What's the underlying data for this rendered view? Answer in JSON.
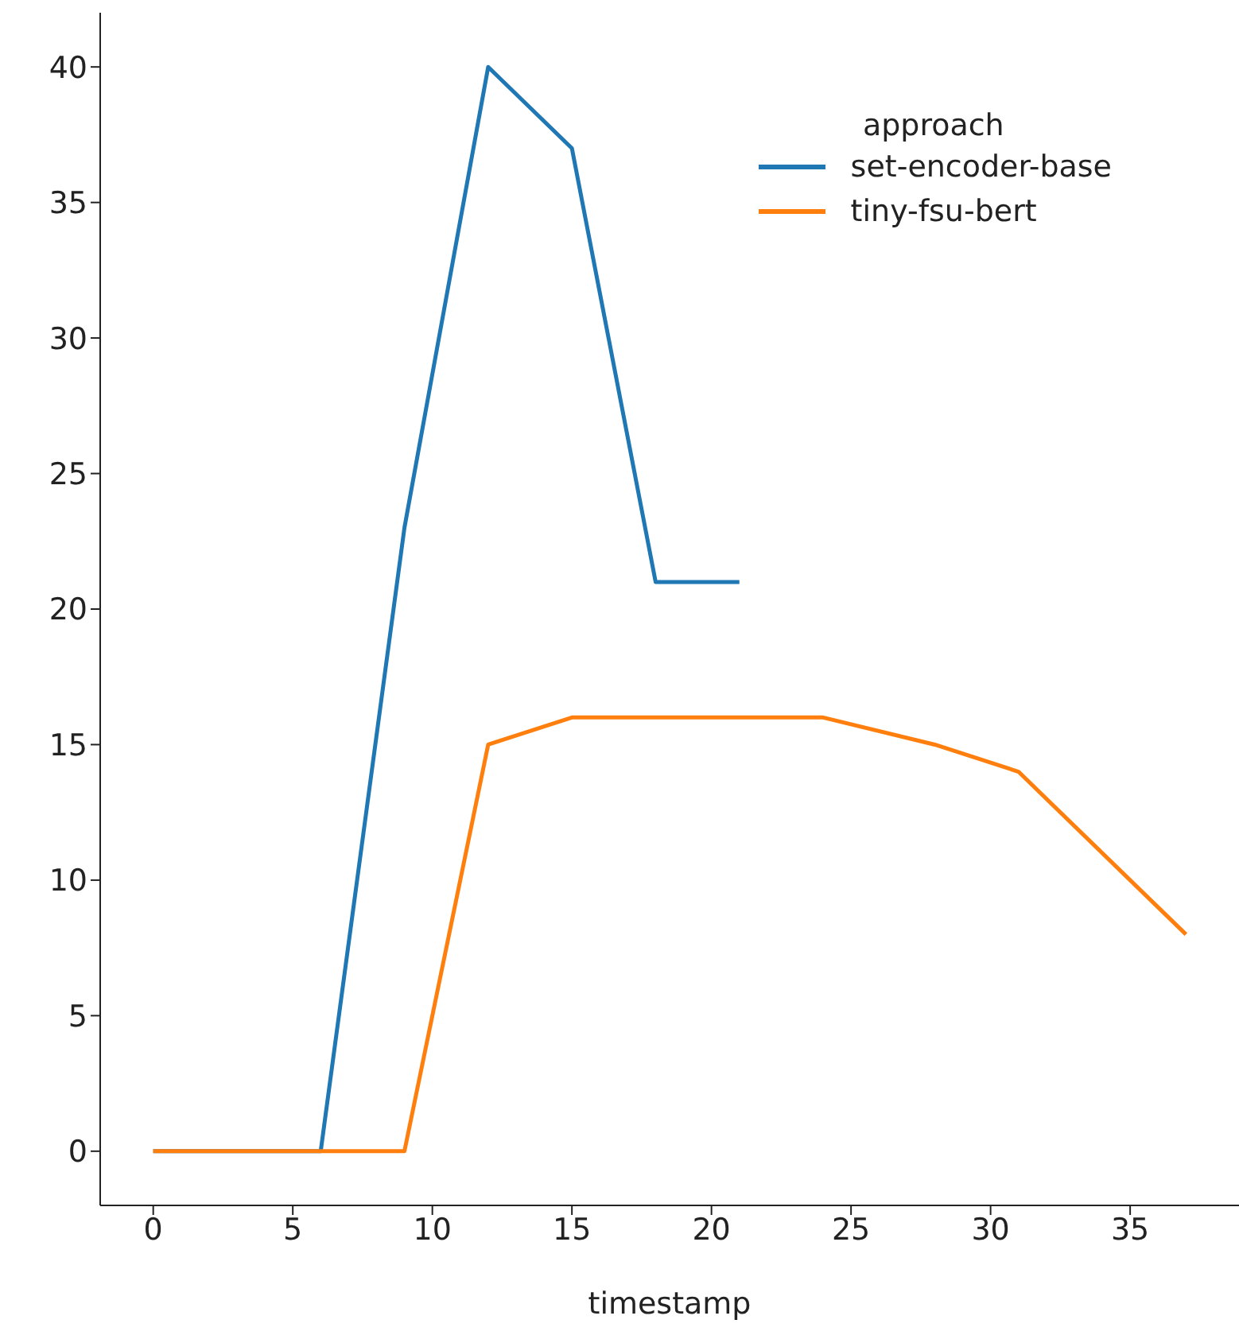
{
  "chart_data": {
    "type": "line",
    "xlabel": "timestamp",
    "legend_title": "approach",
    "legend": "top right",
    "grid": false,
    "marker": "none",
    "line_style": "solid",
    "xlim": [
      -1.9,
      38.9
    ],
    "xticks": [
      0,
      5,
      10,
      15,
      20,
      25,
      30,
      35
    ],
    "ylim": [
      -2,
      42
    ],
    "yticks": [
      0,
      5,
      10,
      15,
      20,
      25,
      30,
      35,
      40
    ],
    "series": [
      {
        "name": "set-encoder-base",
        "color": "#1f77b4",
        "x": [
          0,
          6,
          9,
          12,
          15,
          18,
          21
        ],
        "values": [
          0,
          0,
          23,
          40,
          37,
          21,
          21
        ]
      },
      {
        "name": "tiny-fsu-bert",
        "color": "#ff7f0e",
        "x": [
          0,
          9,
          12,
          15,
          24,
          28,
          31,
          37
        ],
        "values": [
          0,
          0,
          15,
          16,
          16,
          15,
          14,
          8
        ]
      }
    ]
  }
}
